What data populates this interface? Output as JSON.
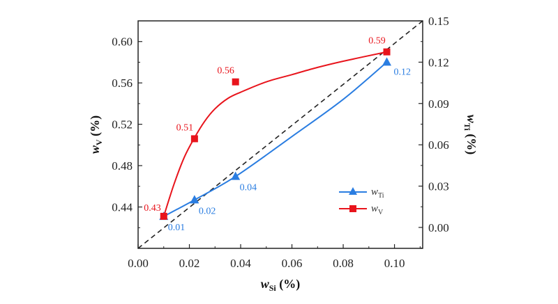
{
  "chart_data": {
    "type": "line",
    "xlabel": {
      "main": "w",
      "sub": "Si",
      "unit": " (%)"
    },
    "ylabel_left": {
      "main": "w",
      "sub": "V",
      "unit": " (%)"
    },
    "ylabel_right": {
      "main": "w",
      "sub": "Ti",
      "unit": " (%)"
    },
    "xlim": [
      0,
      0.111
    ],
    "ylim_left": [
      0.4,
      0.62
    ],
    "ylim_right": [
      -0.0152,
      0.15
    ],
    "x_ticks": [
      "0.00",
      "0.02",
      "0.04",
      "0.06",
      "0.08",
      "0.10"
    ],
    "y_left_ticks": [
      "0.44",
      "0.48",
      "0.52",
      "0.56",
      "0.60"
    ],
    "y_right_ticks": [
      "0.00",
      "0.03",
      "0.06",
      "0.09",
      "0.12",
      "0.15"
    ],
    "grid": false,
    "legend_position": "bottom-right",
    "series": [
      {
        "name": "w_Ti",
        "legend_main": "w",
        "legend_sub": "Ti",
        "axis": "right",
        "color": "#2a7de1",
        "marker": "triangle",
        "x": [
          0.01,
          0.022,
          0.038,
          0.097
        ],
        "y": [
          0.008,
          0.02,
          0.037,
          0.12
        ],
        "labels": [
          "0.01",
          "0.02",
          "0.04",
          "0.12"
        ],
        "fit_x": [
          0.01,
          0.022,
          0.038,
          0.06,
          0.08,
          0.097
        ],
        "fit_y": [
          0.008,
          0.02,
          0.037,
          0.066,
          0.093,
          0.12
        ]
      },
      {
        "name": "w_V",
        "legend_main": "w",
        "legend_sub": "V",
        "axis": "left",
        "color": "#e8141c",
        "marker": "square",
        "x": [
          0.01,
          0.022,
          0.038,
          0.097
        ],
        "y": [
          0.431,
          0.506,
          0.561,
          0.59
        ],
        "labels": [
          "0.43",
          "0.51",
          "0.56",
          "0.59"
        ],
        "fit_x": [
          0.01,
          0.014,
          0.018,
          0.022,
          0.026,
          0.03,
          0.035,
          0.04,
          0.05,
          0.06,
          0.07,
          0.08,
          0.097
        ],
        "fit_y": [
          0.431,
          0.462,
          0.488,
          0.507,
          0.523,
          0.535,
          0.545,
          0.551,
          0.561,
          0.568,
          0.575,
          0.581,
          0.59
        ]
      }
    ],
    "reference_line": {
      "style": "dashed",
      "color": "#222222",
      "description_hidden": true
    }
  }
}
